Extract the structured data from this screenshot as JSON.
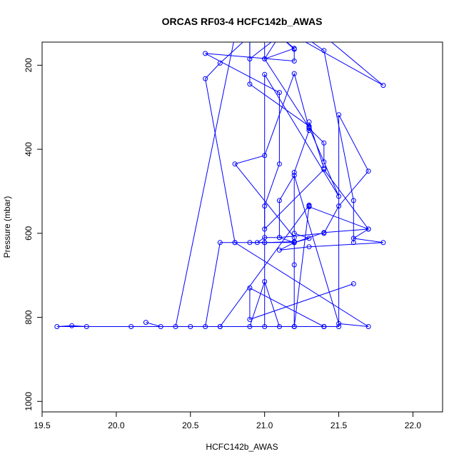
{
  "chart_data": {
    "type": "line",
    "title": "ORCAS RF03-4 HCFC142b_AWAS",
    "xlabel": "HCFC142b_AWAS",
    "ylabel": "Pressure (mbar)",
    "xlim": [
      19.5,
      22.2
    ],
    "ylim": [
      1025,
      145
    ],
    "y_reversed": true,
    "xticks": [
      19.5,
      20.0,
      20.5,
      21.0,
      21.5,
      22.0
    ],
    "xtick_labels": [
      "19.5",
      "20.0",
      "20.5",
      "21.0",
      "21.5",
      "22.0"
    ],
    "yticks": [
      200,
      400,
      600,
      800,
      1000
    ],
    "ytick_labels": [
      "200",
      "400",
      "600",
      "800",
      "1000"
    ],
    "grid": false,
    "legend": "none",
    "color": "#0000ff",
    "marker": "open-circle",
    "series": [
      {
        "x": [
          21.0,
          21.0,
          21.1,
          21.4,
          21.8,
          21.2,
          21.25,
          21.3,
          21.4,
          21.6,
          21.6
        ],
        "y": [
          130,
          185,
          130,
          130,
          248,
          130,
          130,
          140,
          165,
          522,
          622
        ]
      },
      {
        "x": [
          21.6,
          20.9,
          20.9,
          21.4,
          21.4,
          21.5,
          21.5,
          21.7,
          21.5,
          21.4,
          21.1,
          21.0,
          20.95,
          20.9,
          21.0,
          21.2,
          21.2,
          20.8,
          21.0,
          21.2,
          21.3,
          21.4,
          21.4
        ],
        "y": [
          720,
          805,
          730,
          822,
          822,
          822,
          318,
          452,
          535,
          600,
          610,
          610,
          622,
          622,
          622,
          620,
          610,
          435,
          415,
          220,
          350,
          385,
          430
        ]
      },
      {
        "x": [
          21.4,
          21.3,
          21.3,
          21.3,
          21.2,
          21.2,
          21.3,
          21.2,
          21.1,
          21.1,
          21.2,
          21.5,
          21.7,
          20.8,
          20.6,
          20.7,
          20.9,
          20.9,
          21.3
        ],
        "y": [
          445,
          335,
          350,
          355,
          455,
          600,
          612,
          622,
          610,
          522,
          462,
          815,
          822,
          622,
          232,
          195,
          130,
          245,
          345
        ]
      },
      {
        "x": [
          21.3,
          21.2,
          21.2,
          21.2,
          21.2,
          21.4,
          21.7,
          21.4,
          21.0,
          21.0,
          21.1,
          21.1,
          20.6,
          21.2,
          21.2,
          21.1,
          20.8,
          20.4
        ],
        "y": [
          535,
          822,
          822,
          675,
          622,
          598,
          590,
          448,
          590,
          535,
          435,
          265,
          172,
          190,
          162,
          130,
          130,
          822
        ]
      },
      {
        "x": [
          19.8,
          19.7,
          19.6,
          20.1,
          20.7,
          21.1,
          21.0,
          20.9,
          21.0,
          21.0,
          21.5,
          21.3,
          21.0,
          21.2,
          21.1,
          20.9,
          20.9
        ],
        "y": [
          822,
          820,
          822,
          822,
          822,
          822,
          715,
          822,
          822,
          222,
          512,
          348,
          185,
          160,
          130,
          185,
          130
        ]
      },
      {
        "x": [
          20.2,
          20.3,
          20.5,
          20.6,
          20.7,
          20.8,
          21.0,
          21.2,
          21.1,
          21.3,
          21.8,
          21.6,
          21.7,
          21.3,
          21.3,
          20.7,
          21.2,
          21.2,
          21.4
        ],
        "y": [
          812,
          822,
          822,
          822,
          622,
          622,
          622,
          622,
          640,
          632,
          622,
          612,
          590,
          537,
          533,
          822,
          822,
          822,
          822
        ]
      }
    ]
  }
}
